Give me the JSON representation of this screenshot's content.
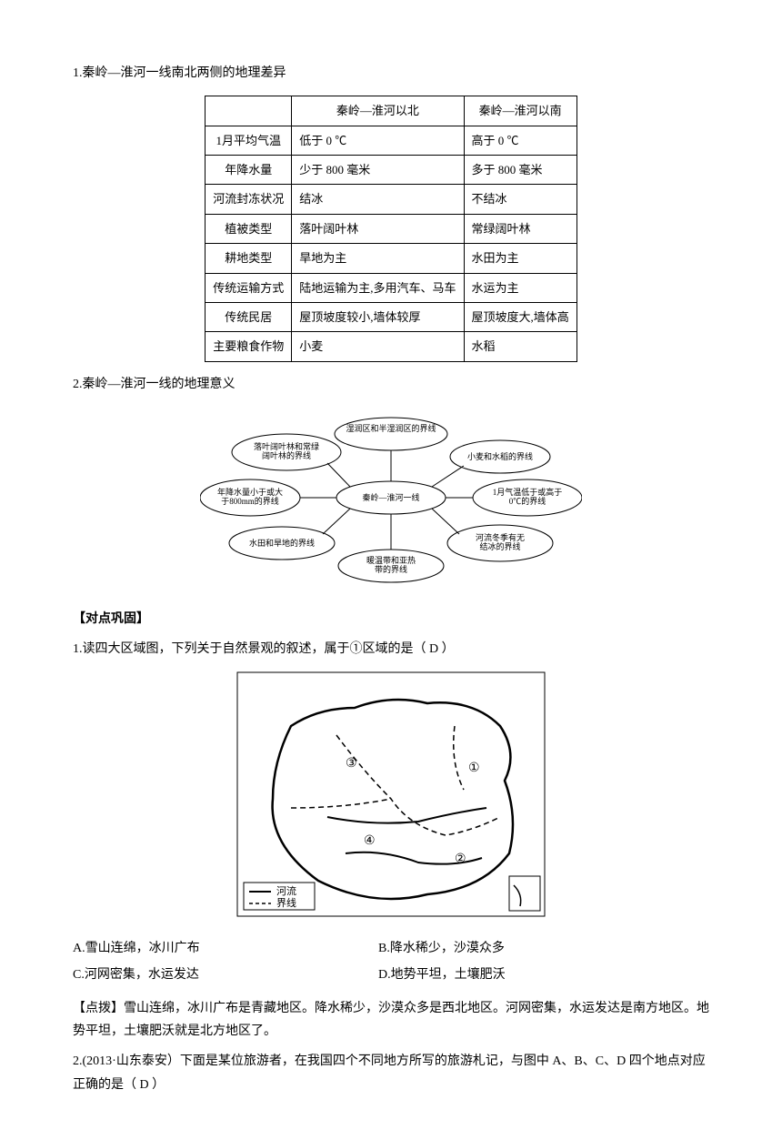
{
  "section1": {
    "title": "1.秦岭—淮河一线南北两侧的地理差异",
    "table": {
      "columns": [
        "",
        "秦岭—淮河以北",
        "秦岭—淮河以南"
      ],
      "rows": [
        [
          "1月平均气温",
          "低于 0 ℃",
          "高于 0 ℃"
        ],
        [
          "年降水量",
          "少于 800 毫米",
          "多于 800 毫米"
        ],
        [
          "河流封冻状况",
          "结冰",
          "不结冰"
        ],
        [
          "植被类型",
          "落叶阔叶林",
          "常绿阔叶林"
        ],
        [
          "耕地类型",
          "旱地为主",
          "水田为主"
        ],
        [
          "传统运输方式",
          "陆地运输为主,多用汽车、马车",
          "水运为主"
        ],
        [
          "传统民居",
          "屋顶坡度较小,墙体较厚",
          "屋顶坡度大,墙体高"
        ],
        [
          "主要粮食作物",
          "小麦",
          "水稻"
        ]
      ]
    }
  },
  "section2": {
    "title": "2.秦岭—淮河一线的地理意义",
    "center": "秦岭—淮河一线",
    "nodes": [
      "湿润区和半湿润区的界线",
      "小麦和水稻的界线",
      "1月气温低于或高于0℃的界线",
      "河流冬季有无结冰的界线",
      "暖温带和亚热带的界线",
      "水田和旱地的界线",
      "年降水量小于或大于800mm的界线",
      "落叶阔叶林和常绿阔叶林的界线"
    ]
  },
  "practice": {
    "header": "【对点巩固】",
    "q1": {
      "stem": "1.读四大区域图，下列关于自然景观的叙述，属于①区域的是（   D   ）",
      "map": {
        "legend_river": "—— 河流",
        "legend_border": "---- 界线",
        "labels": [
          "①",
          "②",
          "③",
          "④"
        ]
      },
      "options": [
        "A.雪山连绵，冰川广布",
        "B.降水稀少，沙漠众多",
        "C.河网密集，水运发达",
        "D.地势平坦，土壤肥沃"
      ],
      "hint": "【点拨】雪山连绵，冰川广布是青藏地区。降水稀少，沙漠众多是西北地区。河网密集，水运发达是南方地区。地势平坦，土壤肥沃就是北方地区了。"
    },
    "q2": {
      "stem": "2.(2013·山东泰安）下面是某位旅游者，在我国四个不同地方所写的旅游札记，与图中 A、B、C、D 四个地点对应正确的是（   D   ）"
    }
  },
  "style": {
    "text_color": "#000000",
    "bg_color": "#ffffff",
    "font_size_body": 14,
    "font_size_table": 13,
    "table_border_color": "#000000"
  }
}
